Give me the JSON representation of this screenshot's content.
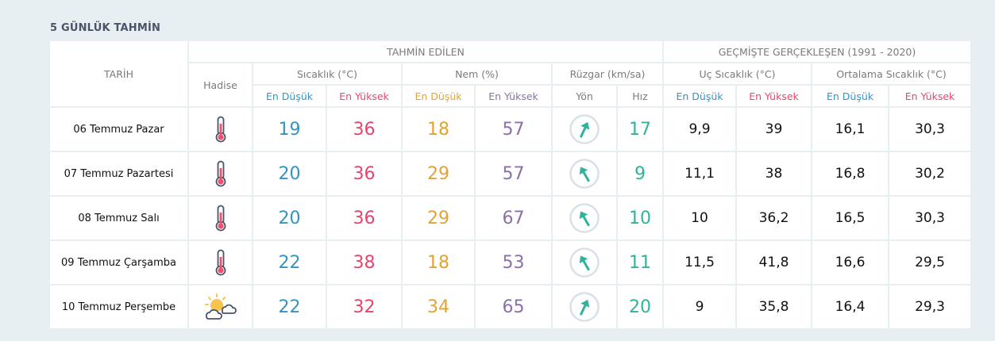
{
  "title": "5 GÜNLÜK TAHMİN",
  "headers": {
    "tarih": "TARİH",
    "tahmin_edilen": "TAHMİN EDİLEN",
    "gecmiste": "GEÇMİŞTE GERÇEKLEŞEN (1991 - 2020)",
    "hadise": "Hadise",
    "sicaklik": "Sıcaklık (°C)",
    "nem": "Nem (%)",
    "ruzgar": "Rüzgar (km/sa)",
    "uc_sicaklik": "Uç Sıcaklık (°C)",
    "ortalama_sicaklik": "Ortalama Sıcaklık (°C)",
    "en_dusuk": "En Düşük",
    "en_yuksek": "En Yüksek",
    "yon": "Yön",
    "hiz": "Hız"
  },
  "colors": {
    "low": "#3593c1",
    "high": "#e5466b",
    "humidity_low": "#e3a234",
    "humidity_high": "#8a70a6",
    "wind": "#2fb39a"
  },
  "rows": [
    {
      "date": "06 Temmuz Pazar",
      "icon": "thermometer-icon",
      "temp_min": "19",
      "temp_max": "36",
      "hum_min": "18",
      "hum_max": "57",
      "wind_dir_deg": 205,
      "wind_speed": "17",
      "extreme_min": "9,9",
      "extreme_max": "39",
      "avg_min": "16,1",
      "avg_max": "30,3"
    },
    {
      "date": "07 Temmuz Pazartesi",
      "icon": "thermometer-icon",
      "temp_min": "20",
      "temp_max": "36",
      "hum_min": "29",
      "hum_max": "57",
      "wind_dir_deg": 150,
      "wind_speed": "9",
      "extreme_min": "11,1",
      "extreme_max": "38",
      "avg_min": "16,8",
      "avg_max": "30,2"
    },
    {
      "date": "08 Temmuz Salı",
      "icon": "thermometer-icon",
      "temp_min": "20",
      "temp_max": "36",
      "hum_min": "29",
      "hum_max": "67",
      "wind_dir_deg": 150,
      "wind_speed": "10",
      "extreme_min": "10",
      "extreme_max": "36,2",
      "avg_min": "16,5",
      "avg_max": "30,3"
    },
    {
      "date": "09 Temmuz Çarşamba",
      "icon": "thermometer-icon",
      "temp_min": "22",
      "temp_max": "38",
      "hum_min": "18",
      "hum_max": "53",
      "wind_dir_deg": 150,
      "wind_speed": "11",
      "extreme_min": "11,5",
      "extreme_max": "41,8",
      "avg_min": "16,6",
      "avg_max": "29,5"
    },
    {
      "date": "10 Temmuz Perşembe",
      "icon": "partly-cloudy-icon",
      "temp_min": "22",
      "temp_max": "32",
      "hum_min": "34",
      "hum_max": "65",
      "wind_dir_deg": 205,
      "wind_speed": "20",
      "extreme_min": "9",
      "extreme_max": "35,8",
      "avg_min": "16,4",
      "avg_max": "29,3"
    }
  ]
}
